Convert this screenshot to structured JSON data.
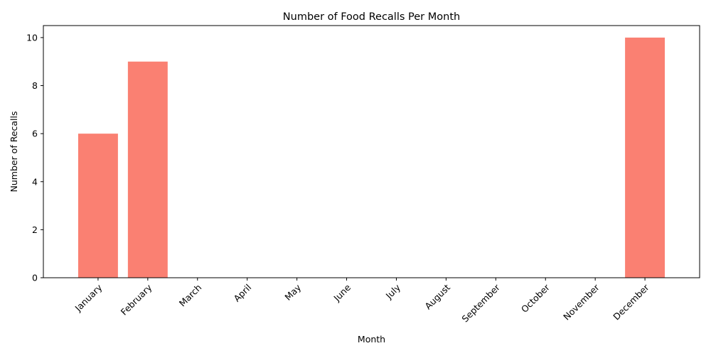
{
  "chart_data": {
    "type": "bar",
    "title": "Number of Food Recalls Per Month",
    "xlabel": "Month",
    "ylabel": "Number of Recalls",
    "categories": [
      "January",
      "February",
      "March",
      "April",
      "May",
      "June",
      "July",
      "August",
      "September",
      "October",
      "November",
      "December"
    ],
    "values": [
      6,
      9,
      0,
      0,
      0,
      0,
      0,
      0,
      0,
      0,
      0,
      10
    ],
    "ylim": [
      0,
      10.5
    ],
    "yticks": [
      0,
      2,
      4,
      6,
      8,
      10
    ],
    "grid": false,
    "bar_color": "#fa8072",
    "xtick_rotation_deg": 45
  }
}
